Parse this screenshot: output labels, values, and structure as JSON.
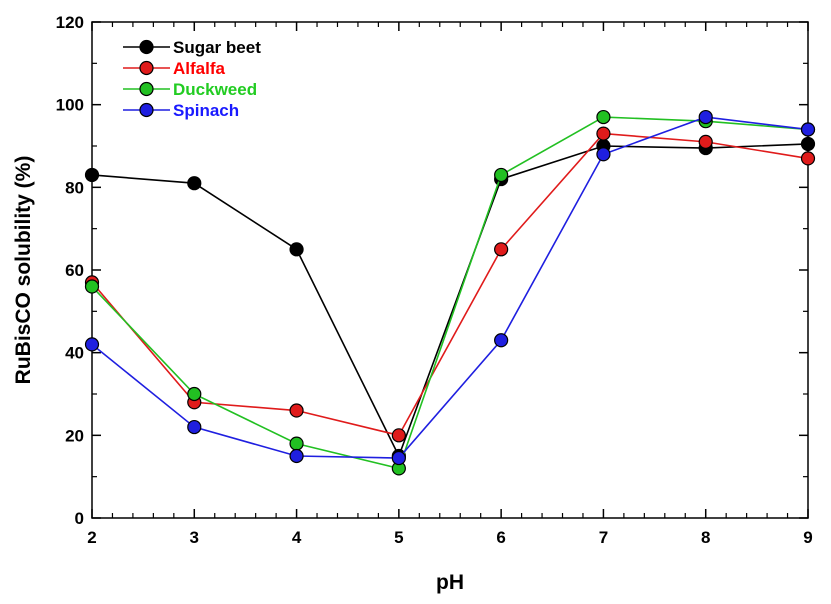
{
  "chart_data": {
    "type": "line",
    "title": "",
    "xlabel": "pH",
    "ylabel": "RuBisCO solubility (%)",
    "xlim": [
      2,
      9
    ],
    "ylim": [
      0,
      120
    ],
    "x_ticks": [
      "2",
      "3",
      "4",
      "5",
      "6",
      "7",
      "8",
      "9"
    ],
    "y_ticks": [
      "0",
      "20",
      "40",
      "60",
      "80",
      "100",
      "120"
    ],
    "x": [
      2,
      3,
      4,
      5,
      6,
      7,
      8,
      9
    ],
    "legend_position": "top-left",
    "series": [
      {
        "name": "Sugar beet",
        "color": "#000000",
        "text_color": "#000000",
        "values": [
          83,
          81,
          65,
          15,
          82,
          90,
          89.5,
          90.5
        ]
      },
      {
        "name": "Alfalfa",
        "color": "#e01b1b",
        "text_color": "#ff0000",
        "values": [
          57,
          28,
          26,
          20,
          65,
          93,
          91,
          87
        ]
      },
      {
        "name": "Duckweed",
        "color": "#22c022",
        "text_color": "#22cc22",
        "values": [
          56,
          30,
          18,
          12,
          83,
          97,
          96,
          94
        ]
      },
      {
        "name": "Spinach",
        "color": "#1f1fe0",
        "text_color": "#1a1aff",
        "values": [
          42,
          22,
          15,
          14.5,
          43,
          88,
          97,
          94
        ]
      }
    ]
  }
}
